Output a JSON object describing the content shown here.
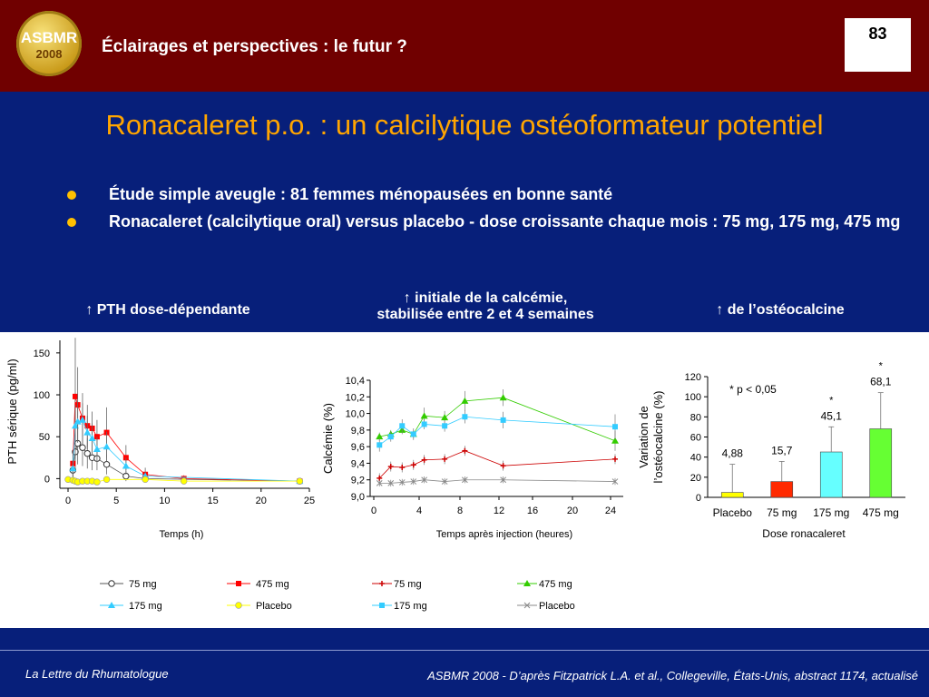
{
  "header": {
    "logo_line1": "ASBMR",
    "logo_line2": "2008",
    "title": "Éclairages et perspectives : le futur ?",
    "page_number": "83"
  },
  "slide_title": "Ronacaleret p.o. : un calcilytique ostéoformateur potentiel",
  "bullets": [
    "Étude simple aveugle : 81 femmes ménopausées en bonne santé",
    "Ronacaleret (calcilytique oral) versus placebo - dose croissante chaque mois : 75 mg, 175 mg,  475 mg"
  ],
  "panel_titles": {
    "pth": "↑ PTH dose-dépendante",
    "calc_line1": "↑ initiale de la calcémie,",
    "calc_line2": "stabilisée entre 2 et 4 semaines",
    "osteo": "↑ de l’ostéocalcine"
  },
  "footer": {
    "left": "La Lettre du Rhumatologue",
    "right": "ASBMR 2008 - D’après Fitzpatrick L.A. et al., Collegeville, États-Unis, abstract 1174, actualisé"
  },
  "colors": {
    "header_bg": "#700000",
    "slide_bg": "#071f7a",
    "title": "#ffa500",
    "bullet": "#ffc000"
  },
  "chart_data": [
    {
      "type": "line",
      "xlabel": "Temps (h)",
      "ylabel": "PTH sérique (pg/ml)",
      "xlim": [
        0,
        25
      ],
      "ylim": [
        -5,
        165
      ],
      "xticks": [
        0,
        5,
        10,
        15,
        20,
        25
      ],
      "yticks": [
        0,
        50,
        100,
        150
      ],
      "legend_position": "below",
      "series": [
        {
          "name": "75 mg",
          "color": "#ffffff",
          "marker": "circle-open",
          "x": [
            0.5,
            0.75,
            1,
            1.5,
            2,
            2.5,
            3,
            4,
            6,
            8,
            24
          ],
          "y": [
            10,
            32,
            42,
            37,
            30,
            25,
            24,
            17,
            3,
            0,
            -3
          ],
          "err": [
            12,
            20,
            25,
            22,
            18,
            15,
            14,
            12,
            6,
            4,
            3
          ]
        },
        {
          "name": "475 mg",
          "color": "#ff0000",
          "marker": "square",
          "x": [
            0.5,
            0.75,
            1,
            1.5,
            2,
            2.5,
            3,
            4,
            6,
            8,
            12,
            24
          ],
          "y": [
            18,
            98,
            88,
            72,
            63,
            60,
            50,
            55,
            25,
            5,
            0,
            -3
          ],
          "err": [
            15,
            70,
            45,
            30,
            25,
            20,
            20,
            30,
            15,
            8,
            4,
            3
          ]
        },
        {
          "name": "175 mg",
          "color": "#33ccff",
          "marker": "triangle",
          "x": [
            0.5,
            0.75,
            1,
            1.5,
            2,
            2.5,
            3,
            4,
            6,
            8,
            24
          ],
          "y": [
            12,
            63,
            68,
            70,
            55,
            48,
            35,
            38,
            15,
            3,
            -3
          ],
          "err": [
            10,
            25,
            25,
            20,
            20,
            18,
            15,
            18,
            10,
            5,
            3
          ]
        },
        {
          "name": "Placebo",
          "color": "#ffff00",
          "marker": "circle",
          "x": [
            0,
            0.5,
            0.75,
            1,
            1.5,
            2,
            2.5,
            3,
            4,
            8,
            12,
            24
          ],
          "y": [
            -1,
            -2,
            -3,
            -4,
            -3,
            -3,
            -3,
            -4,
            -1,
            -1,
            -3,
            -3
          ],
          "err": [
            2,
            2,
            2,
            2,
            2,
            2,
            2,
            2,
            2,
            2,
            2,
            2
          ]
        }
      ]
    },
    {
      "type": "line",
      "xlabel": "Temps après injection (heures)",
      "ylabel": "Calcémie (%)",
      "ylim": [
        9.0,
        10.4
      ],
      "xticks": [
        0,
        4,
        8,
        12,
        16,
        20,
        24
      ],
      "yticks": [
        "9,0",
        "9,2",
        "9,4",
        "9,6",
        "9,8",
        "10,0",
        "10,2",
        "10,4"
      ],
      "legend_position": "below",
      "series": [
        {
          "name": "75 mg",
          "color": "#cc0000",
          "marker": "plus",
          "x": [
            0.5,
            1.5,
            2.5,
            3.5,
            4.5,
            6.5,
            8.5,
            12.5,
            24.5
          ],
          "y": [
            9.22,
            9.36,
            9.35,
            9.38,
            9.44,
            9.45,
            9.55,
            9.37,
            9.45
          ],
          "err": [
            0.06,
            0.06,
            0.06,
            0.06,
            0.06,
            0.06,
            0.06,
            0.06,
            0.06
          ]
        },
        {
          "name": "475 mg",
          "color": "#33cc00",
          "marker": "triangle",
          "x": [
            0.5,
            1.5,
            2.5,
            3.5,
            4.5,
            6.5,
            8.5,
            12.5,
            24.5
          ],
          "y": [
            9.72,
            9.75,
            9.8,
            9.75,
            9.97,
            9.95,
            10.15,
            10.19,
            9.67
          ],
          "err": [
            0.05,
            0.05,
            0.05,
            0.05,
            0.1,
            0.08,
            0.12,
            0.1,
            0.12
          ]
        },
        {
          "name": "175 mg",
          "color": "#33ccff",
          "marker": "square",
          "x": [
            0.5,
            1.5,
            2.5,
            3.5,
            4.5,
            6.5,
            8.5,
            12.5,
            24.5
          ],
          "y": [
            9.62,
            9.72,
            9.85,
            9.75,
            9.87,
            9.85,
            9.96,
            9.92,
            9.84
          ],
          "err": [
            0.08,
            0.06,
            0.08,
            0.07,
            0.06,
            0.07,
            0.08,
            0.1,
            0.15
          ]
        },
        {
          "name": "Placebo",
          "color": "#888888",
          "marker": "x",
          "x": [
            0.5,
            1.5,
            2.5,
            3.5,
            4.5,
            6.5,
            8.5,
            12.5,
            24.5
          ],
          "y": [
            9.16,
            9.16,
            9.17,
            9.18,
            9.2,
            9.18,
            9.2,
            9.2,
            9.18
          ],
          "err": [
            0.04,
            0.04,
            0.04,
            0.04,
            0.04,
            0.04,
            0.04,
            0.04,
            0.04
          ]
        }
      ]
    },
    {
      "type": "bar",
      "xlabel": "Dose ronacaleret",
      "ylabel": "Variation de l’ostéocalcine (%)",
      "ylim": [
        0,
        120
      ],
      "yticks": [
        0,
        20,
        40,
        60,
        80,
        100,
        120
      ],
      "categories": [
        "Placebo",
        "75 mg",
        "175 mg",
        "475 mg"
      ],
      "values": [
        4.88,
        15.7,
        45.1,
        68.1
      ],
      "value_labels": [
        "4,88",
        "15,7",
        "45,1",
        "68,1"
      ],
      "errors": [
        28,
        20,
        25,
        36
      ],
      "bar_colors": [
        "#ffff00",
        "#ff2a00",
        "#66ffff",
        "#66ff33"
      ],
      "significance": [
        "",
        "",
        "*",
        "*"
      ],
      "annotation": "* p < 0,05"
    }
  ]
}
